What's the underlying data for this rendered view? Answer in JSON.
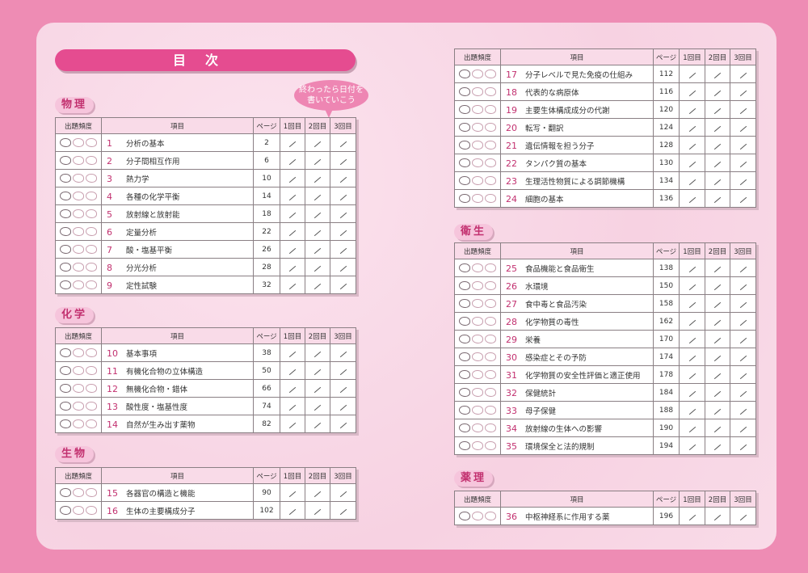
{
  "title": "目次",
  "bubble": [
    "終わったら日付を",
    "書いていこう"
  ],
  "headers": {
    "freq": "出題頻度",
    "item": "項目",
    "page": "ページ",
    "r1": "1回目",
    "r2": "2回目",
    "r3": "3回目"
  },
  "colors": {
    "background": "#ee8cb4",
    "accent": "#e54c90",
    "number": "#c2306f"
  },
  "sections": [
    {
      "label": "物理",
      "rows": [
        {
          "n": "1",
          "t": "分析の基本",
          "p": "2",
          "f": 1
        },
        {
          "n": "2",
          "t": "分子間相互作用",
          "p": "6",
          "f": 1
        },
        {
          "n": "3",
          "t": "熱力学",
          "p": "10",
          "f": 1
        },
        {
          "n": "4",
          "t": "各種の化学平衡",
          "p": "14",
          "f": 1
        },
        {
          "n": "5",
          "t": "放射線と放射能",
          "p": "18",
          "f": 1
        },
        {
          "n": "6",
          "t": "定量分析",
          "p": "22",
          "f": 1
        },
        {
          "n": "7",
          "t": "酸・塩基平衡",
          "p": "26",
          "f": 1
        },
        {
          "n": "8",
          "t": "分光分析",
          "p": "28",
          "f": 1
        },
        {
          "n": "9",
          "t": "定性試験",
          "p": "32",
          "f": 1
        }
      ]
    },
    {
      "label": "化学",
      "rows": [
        {
          "n": "10",
          "t": "基本事項",
          "p": "38",
          "f": 1
        },
        {
          "n": "11",
          "t": "有機化合物の立体構造",
          "p": "50",
          "f": 1
        },
        {
          "n": "12",
          "t": "無機化合物・錯体",
          "p": "66",
          "f": 1
        },
        {
          "n": "13",
          "t": "酸性度・塩基性度",
          "p": "74",
          "f": 1
        },
        {
          "n": "14",
          "t": "自然が生み出す薬物",
          "p": "82",
          "f": 1
        }
      ]
    },
    {
      "label": "生物",
      "rows": [
        {
          "n": "15",
          "t": "各器官の構造と機能",
          "p": "90",
          "f": 1
        },
        {
          "n": "16",
          "t": "生体の主要構成分子",
          "p": "102",
          "f": 1
        }
      ]
    },
    {
      "label": "",
      "rows": [
        {
          "n": "17",
          "t": "分子レベルで見た免疫の仕組み",
          "p": "112",
          "f": 1
        },
        {
          "n": "18",
          "t": "代表的な病原体",
          "p": "116",
          "f": 1
        },
        {
          "n": "19",
          "t": "主要生体構成成分の代謝",
          "p": "120",
          "f": 1
        },
        {
          "n": "20",
          "t": "転写・翻訳",
          "p": "124",
          "f": 1
        },
        {
          "n": "21",
          "t": "遺伝情報を担う分子",
          "p": "128",
          "f": 1
        },
        {
          "n": "22",
          "t": "タンパク質の基本",
          "p": "130",
          "f": 1
        },
        {
          "n": "23",
          "t": "生理活性物質による調節機構",
          "p": "134",
          "f": 1
        },
        {
          "n": "24",
          "t": "細胞の基本",
          "p": "136",
          "f": 1
        }
      ]
    },
    {
      "label": "衛生",
      "rows": [
        {
          "n": "25",
          "t": "食品機能と食品衛生",
          "p": "138",
          "f": 1
        },
        {
          "n": "26",
          "t": "水環境",
          "p": "150",
          "f": 1
        },
        {
          "n": "27",
          "t": "食中毒と食品汚染",
          "p": "158",
          "f": 1
        },
        {
          "n": "28",
          "t": "化学物質の毒性",
          "p": "162",
          "f": 1
        },
        {
          "n": "29",
          "t": "栄養",
          "p": "170",
          "f": 1
        },
        {
          "n": "30",
          "t": "感染症とその予防",
          "p": "174",
          "f": 1
        },
        {
          "n": "31",
          "t": "化学物質の安全性評価と適正使用",
          "p": "178",
          "f": 1
        },
        {
          "n": "32",
          "t": "保健統計",
          "p": "184",
          "f": 1
        },
        {
          "n": "33",
          "t": "母子保健",
          "p": "188",
          "f": 1
        },
        {
          "n": "34",
          "t": "放射線の生体への影響",
          "p": "190",
          "f": 1
        },
        {
          "n": "35",
          "t": "環境保全と法的規制",
          "p": "194",
          "f": 1
        }
      ]
    },
    {
      "label": "薬理",
      "rows": [
        {
          "n": "36",
          "t": "中枢神経系に作用する薬",
          "p": "196",
          "f": 1
        }
      ]
    }
  ]
}
